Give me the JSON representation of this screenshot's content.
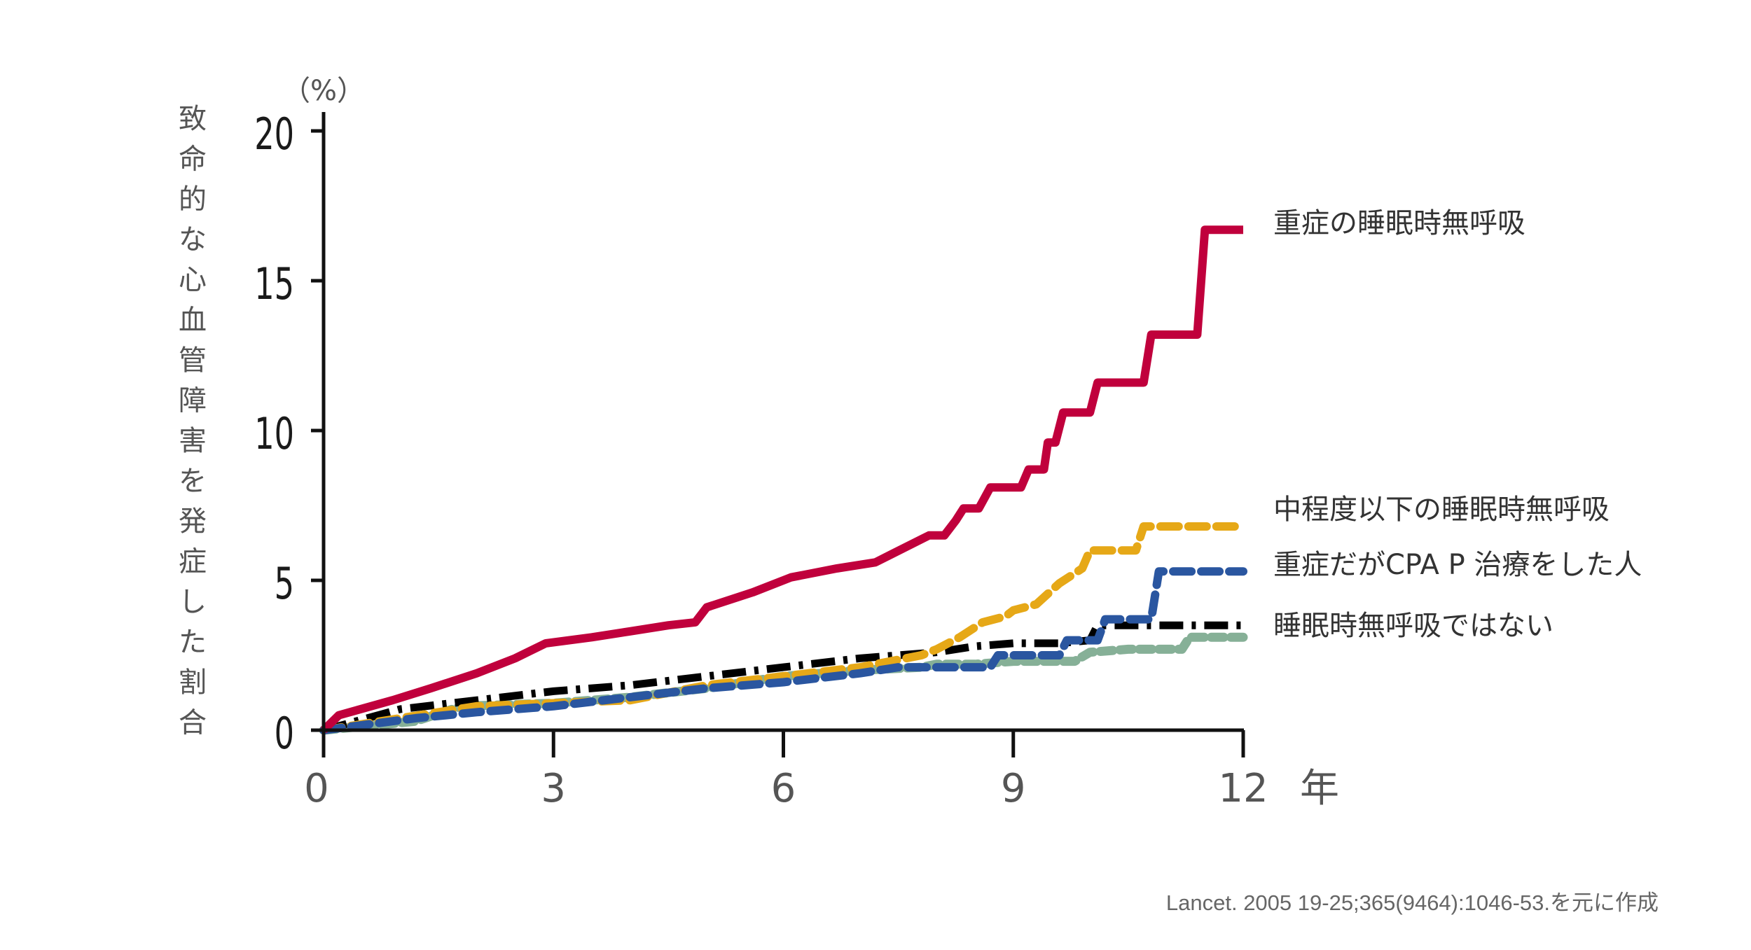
{
  "chart_data": {
    "type": "line",
    "ylabel": "致命的な心血管障害を発症した割合",
    "y_unit": "（%）",
    "x_unit": "年",
    "xlim": [
      0,
      12
    ],
    "ylim": [
      0,
      20
    ],
    "x_ticks": [
      0,
      3,
      6,
      9,
      12
    ],
    "y_ticks": [
      0,
      5,
      10,
      15,
      20
    ],
    "grid": false,
    "legend": "direct labels at right end of lines",
    "source": "Lancet. 2005 19-25;365(9464):1046-53.を元に作成",
    "series": [
      {
        "name": "重症の睡眠時無呼吸",
        "color": "#c0003c",
        "style": "solid",
        "points": [
          [
            0,
            0
          ],
          [
            0.2,
            0.5
          ],
          [
            0.9,
            1.0
          ],
          [
            1.4,
            1.4
          ],
          [
            2.0,
            1.9
          ],
          [
            2.5,
            2.4
          ],
          [
            2.9,
            2.9
          ],
          [
            3.5,
            3.1
          ],
          [
            4.0,
            3.3
          ],
          [
            4.5,
            3.5
          ],
          [
            4.85,
            3.6
          ],
          [
            5.0,
            4.1
          ],
          [
            5.6,
            4.6
          ],
          [
            6.1,
            5.1
          ],
          [
            6.7,
            5.4
          ],
          [
            7.2,
            5.6
          ],
          [
            7.9,
            6.5
          ],
          [
            8.1,
            6.5
          ],
          [
            8.25,
            7.0
          ],
          [
            8.35,
            7.4
          ],
          [
            8.55,
            7.4
          ],
          [
            8.7,
            8.1
          ],
          [
            9.1,
            8.1
          ],
          [
            9.2,
            8.7
          ],
          [
            9.4,
            8.7
          ],
          [
            9.45,
            9.6
          ],
          [
            9.55,
            9.6
          ],
          [
            9.65,
            10.6
          ],
          [
            10.0,
            10.6
          ],
          [
            10.1,
            11.6
          ],
          [
            10.7,
            11.6
          ],
          [
            10.8,
            13.2
          ],
          [
            11.4,
            13.2
          ],
          [
            11.5,
            16.7
          ],
          [
            12.0,
            16.7
          ]
        ]
      },
      {
        "name": "中程度以下の睡眠時無呼吸",
        "color": "#e6a817",
        "style": "dashed",
        "points": [
          [
            0,
            0
          ],
          [
            1.0,
            0.4
          ],
          [
            2.0,
            0.8
          ],
          [
            3.0,
            0.9
          ],
          [
            4.0,
            1.0
          ],
          [
            5.0,
            1.5
          ],
          [
            6.0,
            1.8
          ],
          [
            7.0,
            2.1
          ],
          [
            7.8,
            2.5
          ],
          [
            8.0,
            2.7
          ],
          [
            8.3,
            3.1
          ],
          [
            8.6,
            3.6
          ],
          [
            8.9,
            3.8
          ],
          [
            9.0,
            4.0
          ],
          [
            9.3,
            4.2
          ],
          [
            9.6,
            4.9
          ],
          [
            9.9,
            5.4
          ],
          [
            10.0,
            6.0
          ],
          [
            10.6,
            6.0
          ],
          [
            10.7,
            6.8
          ],
          [
            12.0,
            6.8
          ]
        ]
      },
      {
        "name": "重症だがCPA P 治療をした人",
        "color": "#2a56a0",
        "style": "dashed",
        "points": [
          [
            0,
            0
          ],
          [
            1.2,
            0.4
          ],
          [
            2.0,
            0.6
          ],
          [
            3.0,
            0.8
          ],
          [
            4.0,
            1.1
          ],
          [
            5.0,
            1.4
          ],
          [
            6.0,
            1.6
          ],
          [
            7.0,
            1.9
          ],
          [
            7.5,
            2.1
          ],
          [
            8.0,
            2.1
          ],
          [
            8.7,
            2.1
          ],
          [
            8.8,
            2.5
          ],
          [
            9.6,
            2.5
          ],
          [
            9.7,
            3.0
          ],
          [
            10.1,
            3.0
          ],
          [
            10.2,
            3.7
          ],
          [
            10.8,
            3.7
          ],
          [
            10.9,
            5.3
          ],
          [
            12.0,
            5.3
          ]
        ]
      },
      {
        "name": "睡眠時無呼吸ではない",
        "color": "#000000",
        "style": "dashdot",
        "points": [
          [
            0,
            0
          ],
          [
            1.0,
            0.7
          ],
          [
            2.0,
            1.0
          ],
          [
            3.0,
            1.3
          ],
          [
            4.0,
            1.5
          ],
          [
            5.0,
            1.8
          ],
          [
            6.0,
            2.1
          ],
          [
            7.0,
            2.4
          ],
          [
            8.0,
            2.6
          ],
          [
            8.5,
            2.8
          ],
          [
            9.0,
            2.9
          ],
          [
            9.6,
            2.9
          ],
          [
            10.0,
            3.0
          ],
          [
            10.1,
            3.5
          ],
          [
            12.0,
            3.5
          ]
        ]
      },
      {
        "name": "",
        "color": "#86b097",
        "style": "dotted",
        "points": [
          [
            0,
            0
          ],
          [
            1.2,
            0.3
          ],
          [
            1.8,
            0.8
          ],
          [
            3.0,
            0.9
          ],
          [
            4.0,
            1.1
          ],
          [
            5.0,
            1.4
          ],
          [
            6.0,
            1.8
          ],
          [
            7.0,
            2.0
          ],
          [
            7.8,
            2.1
          ],
          [
            8.0,
            2.2
          ],
          [
            8.5,
            2.2
          ],
          [
            9.0,
            2.3
          ],
          [
            9.8,
            2.3
          ],
          [
            10.0,
            2.6
          ],
          [
            10.5,
            2.7
          ],
          [
            11.2,
            2.7
          ],
          [
            11.3,
            3.1
          ],
          [
            12.0,
            3.1
          ]
        ]
      }
    ],
    "label_y_values": [
      16.7,
      6.8,
      5.3,
      3.5
    ]
  }
}
